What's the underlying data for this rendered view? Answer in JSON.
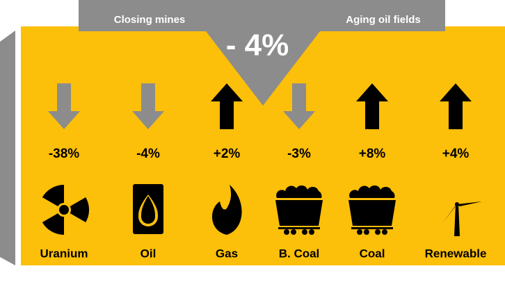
{
  "banner": {
    "left": "Closing mines",
    "right": "Aging oil fields",
    "total": "- 4%"
  },
  "items": [
    {
      "direction": "down",
      "change": "-38%",
      "name": "Uranium",
      "icon": "radiation"
    },
    {
      "direction": "down",
      "change": "-4%",
      "name": "Oil",
      "icon": "barrel"
    },
    {
      "direction": "up",
      "change": "+2%",
      "name": "Gas",
      "icon": "flame"
    },
    {
      "direction": "down",
      "change": "-3%",
      "name": "B. Coal",
      "icon": "cart"
    },
    {
      "direction": "up",
      "change": "+8%",
      "name": "Coal",
      "icon": "cart"
    },
    {
      "direction": "up",
      "change": "+4%",
      "name": "Renewable",
      "icon": "turbine"
    }
  ]
}
